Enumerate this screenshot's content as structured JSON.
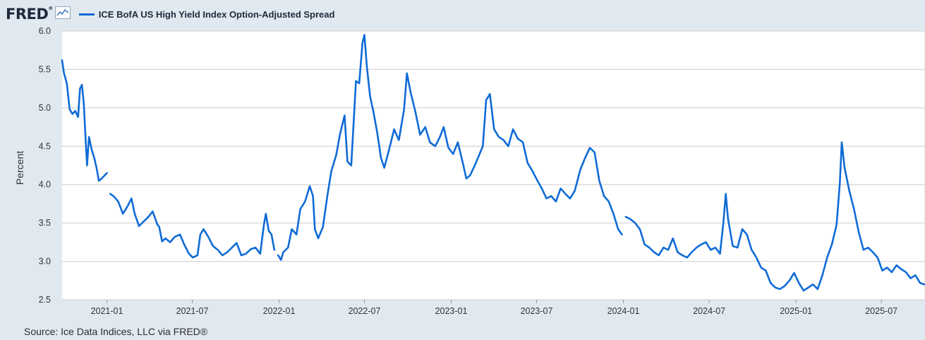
{
  "header": {
    "logo_text": "FRED",
    "logo_mark": "®",
    "logo_icon": "line-graph-icon",
    "legend_label": "ICE BofA US High Yield Index Option-Adjusted Spread"
  },
  "source": "Source: Ice Data Indices, LLC via FRED®",
  "colors": {
    "series": "#0f6bd6",
    "page_bg": "#e1e9f0",
    "plot_bg": "#ffffff",
    "grid": "#cccccc"
  },
  "chart_data": {
    "type": "line",
    "title": "",
    "xlabel": "",
    "ylabel": "Percent",
    "ylim": [
      2.5,
      6.0
    ],
    "xlim": [
      "2020-09-28",
      "2025-09-30"
    ],
    "yticks": [
      2.5,
      3.0,
      3.5,
      4.0,
      4.5,
      5.0,
      5.5,
      6.0
    ],
    "ytick_labels": [
      "2.5",
      "3.0",
      "3.5",
      "4.0",
      "4.5",
      "5.0",
      "5.5",
      "6.0"
    ],
    "xticks": [
      "2021-01-01",
      "2021-07-01",
      "2022-01-01",
      "2022-07-01",
      "2023-01-01",
      "2023-07-01",
      "2024-01-01",
      "2024-07-01",
      "2025-01-01",
      "2025-07-01"
    ],
    "xtick_labels": [
      "2021-01",
      "2021-07",
      "2022-01",
      "2022-07",
      "2023-01",
      "2023-07",
      "2024-01",
      "2024-07",
      "2025-01",
      "2025-07"
    ],
    "grid": "horizontal",
    "series": [
      {
        "name": "ICE BofA US High Yield Index Option-Adjusted Spread",
        "points": [
          [
            "2020-09-28",
            5.62
          ],
          [
            "2020-10-02",
            5.45
          ],
          [
            "2020-10-08",
            5.32
          ],
          [
            "2020-10-14",
            4.98
          ],
          [
            "2020-10-20",
            4.92
          ],
          [
            "2020-10-26",
            4.96
          ],
          [
            "2020-11-01",
            4.88
          ],
          [
            "2020-11-05",
            5.25
          ],
          [
            "2020-11-09",
            5.3
          ],
          [
            "2020-11-13",
            5.05
          ],
          [
            "2020-11-17",
            4.58
          ],
          [
            "2020-11-20",
            4.25
          ],
          [
            "2020-11-24",
            4.62
          ],
          [
            "2020-11-30",
            4.45
          ],
          [
            "2020-12-05",
            4.35
          ],
          [
            "2020-12-10",
            4.22
          ],
          [
            "2020-12-15",
            4.05
          ],
          [
            "2020-12-21",
            4.08
          ],
          [
            "2020-12-27",
            4.12
          ],
          [
            "2021-01-01",
            4.15
          ],
          [
            "2021-01-04",
            null
          ],
          [
            "2021-01-08",
            3.88
          ],
          [
            "2021-01-15",
            3.85
          ],
          [
            "2021-01-25",
            3.78
          ],
          [
            "2021-02-04",
            3.62
          ],
          [
            "2021-02-14",
            3.72
          ],
          [
            "2021-02-22",
            3.82
          ],
          [
            "2021-03-01",
            3.62
          ],
          [
            "2021-03-10",
            3.46
          ],
          [
            "2021-03-20",
            3.52
          ],
          [
            "2021-03-30",
            3.58
          ],
          [
            "2021-04-08",
            3.65
          ],
          [
            "2021-04-18",
            3.48
          ],
          [
            "2021-04-22",
            3.45
          ],
          [
            "2021-04-28",
            3.26
          ],
          [
            "2021-05-05",
            3.3
          ],
          [
            "2021-05-15",
            3.25
          ],
          [
            "2021-05-25",
            3.32
          ],
          [
            "2021-06-05",
            3.35
          ],
          [
            "2021-06-14",
            3.22
          ],
          [
            "2021-06-24",
            3.1
          ],
          [
            "2021-07-02",
            3.05
          ],
          [
            "2021-07-12",
            3.08
          ],
          [
            "2021-07-18",
            3.35
          ],
          [
            "2021-07-25",
            3.42
          ],
          [
            "2021-08-04",
            3.32
          ],
          [
            "2021-08-14",
            3.2
          ],
          [
            "2021-08-24",
            3.15
          ],
          [
            "2021-09-03",
            3.08
          ],
          [
            "2021-09-13",
            3.12
          ],
          [
            "2021-09-23",
            3.18
          ],
          [
            "2021-10-03",
            3.24
          ],
          [
            "2021-10-13",
            3.08
          ],
          [
            "2021-10-23",
            3.1
          ],
          [
            "2021-11-02",
            3.16
          ],
          [
            "2021-11-12",
            3.18
          ],
          [
            "2021-11-22",
            3.1
          ],
          [
            "2021-11-30",
            3.48
          ],
          [
            "2021-12-04",
            3.62
          ],
          [
            "2021-12-10",
            3.4
          ],
          [
            "2021-12-16",
            3.35
          ],
          [
            "2021-12-22",
            3.15
          ],
          [
            "2021-12-26",
            null
          ],
          [
            "2021-12-30",
            3.08
          ],
          [
            "2022-01-05",
            3.02
          ],
          [
            "2022-01-10",
            3.12
          ],
          [
            "2022-01-20",
            3.18
          ],
          [
            "2022-01-28",
            3.42
          ],
          [
            "2022-02-07",
            3.35
          ],
          [
            "2022-02-15",
            3.68
          ],
          [
            "2022-02-25",
            3.78
          ],
          [
            "2022-03-07",
            3.98
          ],
          [
            "2022-03-14",
            3.85
          ],
          [
            "2022-03-18",
            3.42
          ],
          [
            "2022-03-25",
            3.3
          ],
          [
            "2022-04-04",
            3.45
          ],
          [
            "2022-04-14",
            3.88
          ],
          [
            "2022-04-22",
            4.18
          ],
          [
            "2022-05-02",
            4.38
          ],
          [
            "2022-05-10",
            4.65
          ],
          [
            "2022-05-20",
            4.9
          ],
          [
            "2022-05-26",
            4.3
          ],
          [
            "2022-06-03",
            4.25
          ],
          [
            "2022-06-13",
            5.35
          ],
          [
            "2022-06-20",
            5.32
          ],
          [
            "2022-06-27",
            5.85
          ],
          [
            "2022-07-01",
            5.95
          ],
          [
            "2022-07-06",
            5.55
          ],
          [
            "2022-07-13",
            5.15
          ],
          [
            "2022-07-20",
            4.95
          ],
          [
            "2022-07-28",
            4.68
          ],
          [
            "2022-08-05",
            4.35
          ],
          [
            "2022-08-12",
            4.22
          ],
          [
            "2022-08-22",
            4.45
          ],
          [
            "2022-09-02",
            4.72
          ],
          [
            "2022-09-12",
            4.58
          ],
          [
            "2022-09-23",
            4.98
          ],
          [
            "2022-09-29",
            5.45
          ],
          [
            "2022-10-07",
            5.2
          ],
          [
            "2022-10-17",
            4.95
          ],
          [
            "2022-10-27",
            4.65
          ],
          [
            "2022-11-07",
            4.75
          ],
          [
            "2022-11-17",
            4.55
          ],
          [
            "2022-11-28",
            4.5
          ],
          [
            "2022-12-08",
            4.62
          ],
          [
            "2022-12-16",
            4.75
          ],
          [
            "2022-12-26",
            4.48
          ],
          [
            "2023-01-05",
            4.4
          ],
          [
            "2023-01-15",
            4.55
          ],
          [
            "2023-01-25",
            4.3
          ],
          [
            "2023-02-02",
            4.08
          ],
          [
            "2023-02-10",
            4.12
          ],
          [
            "2023-02-20",
            4.25
          ],
          [
            "2023-03-01",
            4.38
          ],
          [
            "2023-03-09",
            4.5
          ],
          [
            "2023-03-16",
            5.1
          ],
          [
            "2023-03-24",
            5.18
          ],
          [
            "2023-04-02",
            4.72
          ],
          [
            "2023-04-12",
            4.62
          ],
          [
            "2023-04-22",
            4.58
          ],
          [
            "2023-05-02",
            4.5
          ],
          [
            "2023-05-12",
            4.72
          ],
          [
            "2023-05-22",
            4.6
          ],
          [
            "2023-06-02",
            4.55
          ],
          [
            "2023-06-12",
            4.28
          ],
          [
            "2023-06-22",
            4.18
          ],
          [
            "2023-07-02",
            4.06
          ],
          [
            "2023-07-12",
            3.95
          ],
          [
            "2023-07-22",
            3.82
          ],
          [
            "2023-08-01",
            3.85
          ],
          [
            "2023-08-11",
            3.78
          ],
          [
            "2023-08-21",
            3.95
          ],
          [
            "2023-08-31",
            3.88
          ],
          [
            "2023-09-10",
            3.82
          ],
          [
            "2023-09-20",
            3.92
          ],
          [
            "2023-10-02",
            4.2
          ],
          [
            "2023-10-12",
            4.35
          ],
          [
            "2023-10-22",
            4.48
          ],
          [
            "2023-11-01",
            4.42
          ],
          [
            "2023-11-11",
            4.05
          ],
          [
            "2023-11-21",
            3.85
          ],
          [
            "2023-12-01",
            3.78
          ],
          [
            "2023-12-11",
            3.62
          ],
          [
            "2023-12-21",
            3.42
          ],
          [
            "2023-12-29",
            3.35
          ],
          [
            "2024-01-02",
            null
          ],
          [
            "2024-01-06",
            3.58
          ],
          [
            "2024-01-16",
            3.55
          ],
          [
            "2024-01-26",
            3.5
          ],
          [
            "2024-02-05",
            3.42
          ],
          [
            "2024-02-15",
            3.22
          ],
          [
            "2024-02-25",
            3.18
          ],
          [
            "2024-03-06",
            3.12
          ],
          [
            "2024-03-16",
            3.08
          ],
          [
            "2024-03-26",
            3.18
          ],
          [
            "2024-04-05",
            3.15
          ],
          [
            "2024-04-15",
            3.3
          ],
          [
            "2024-04-25",
            3.12
          ],
          [
            "2024-05-05",
            3.08
          ],
          [
            "2024-05-15",
            3.05
          ],
          [
            "2024-05-25",
            3.12
          ],
          [
            "2024-06-04",
            3.18
          ],
          [
            "2024-06-14",
            3.22
          ],
          [
            "2024-06-24",
            3.25
          ],
          [
            "2024-07-04",
            3.15
          ],
          [
            "2024-07-14",
            3.18
          ],
          [
            "2024-07-24",
            3.1
          ],
          [
            "2024-07-31",
            3.5
          ],
          [
            "2024-08-05",
            3.88
          ],
          [
            "2024-08-10",
            3.55
          ],
          [
            "2024-08-20",
            3.2
          ],
          [
            "2024-08-30",
            3.18
          ],
          [
            "2024-09-09",
            3.42
          ],
          [
            "2024-09-19",
            3.35
          ],
          [
            "2024-09-29",
            3.15
          ],
          [
            "2024-10-09",
            3.05
          ],
          [
            "2024-10-19",
            2.92
          ],
          [
            "2024-10-29",
            2.88
          ],
          [
            "2024-11-08",
            2.72
          ],
          [
            "2024-11-18",
            2.66
          ],
          [
            "2024-11-28",
            2.64
          ],
          [
            "2024-12-08",
            2.68
          ],
          [
            "2024-12-18",
            2.75
          ],
          [
            "2024-12-28",
            2.85
          ],
          [
            "2025-01-07",
            2.72
          ],
          [
            "2025-01-17",
            2.62
          ],
          [
            "2025-01-27",
            2.66
          ],
          [
            "2025-02-06",
            2.7
          ],
          [
            "2025-02-16",
            2.64
          ],
          [
            "2025-02-26",
            2.82
          ],
          [
            "2025-03-08",
            3.05
          ],
          [
            "2025-03-18",
            3.22
          ],
          [
            "2025-03-28",
            3.48
          ],
          [
            "2025-04-04",
            4.02
          ],
          [
            "2025-04-08",
            4.55
          ],
          [
            "2025-04-14",
            4.22
          ],
          [
            "2025-04-24",
            3.92
          ],
          [
            "2025-05-04",
            3.68
          ],
          [
            "2025-05-14",
            3.38
          ],
          [
            "2025-05-24",
            3.15
          ],
          [
            "2025-06-03",
            3.18
          ],
          [
            "2025-06-13",
            3.12
          ],
          [
            "2025-06-23",
            3.05
          ],
          [
            "2025-07-03",
            2.88
          ],
          [
            "2025-07-13",
            2.92
          ],
          [
            "2025-07-23",
            2.86
          ],
          [
            "2025-08-02",
            2.95
          ],
          [
            "2025-08-12",
            2.9
          ],
          [
            "2025-08-22",
            2.86
          ],
          [
            "2025-09-01",
            2.78
          ],
          [
            "2025-09-11",
            2.82
          ],
          [
            "2025-09-21",
            2.72
          ],
          [
            "2025-09-30",
            2.7
          ]
        ]
      }
    ]
  }
}
